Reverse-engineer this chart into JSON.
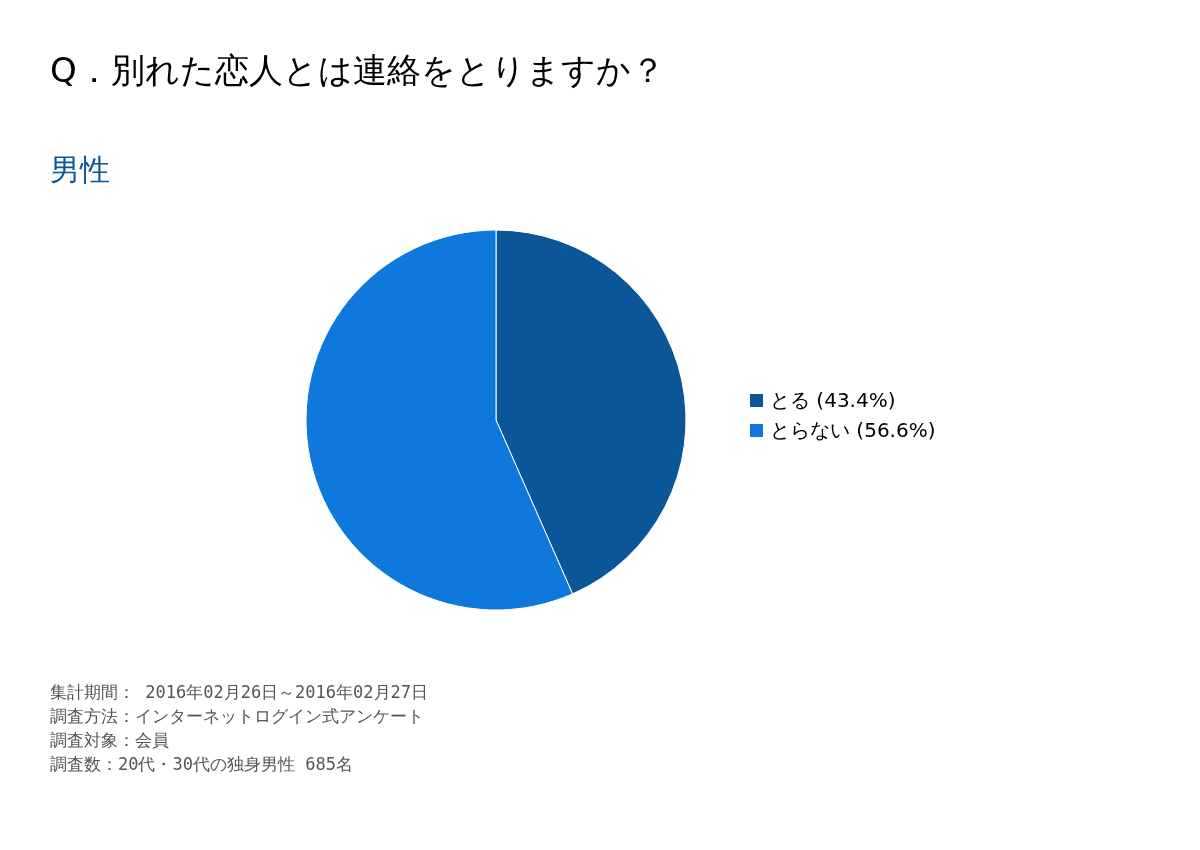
{
  "chart_data": {
    "type": "pie",
    "title": "Q．別れた恋人とは連絡をとりますか？",
    "subtitle": "男性",
    "categories": [
      "とる (43.4%)",
      "とらない (56.6%)"
    ],
    "values": [
      43.4,
      56.6
    ],
    "colors": [
      "#0b5599",
      "#0e78dc"
    ],
    "legend": "right",
    "annotations": [
      "集計期間： 2016年02月26日～2016年02月27日",
      "調査方法：インターネットログイン式アンケート",
      "調査対象：会員",
      "調査数：20代・30代の独身男性 685名"
    ]
  }
}
